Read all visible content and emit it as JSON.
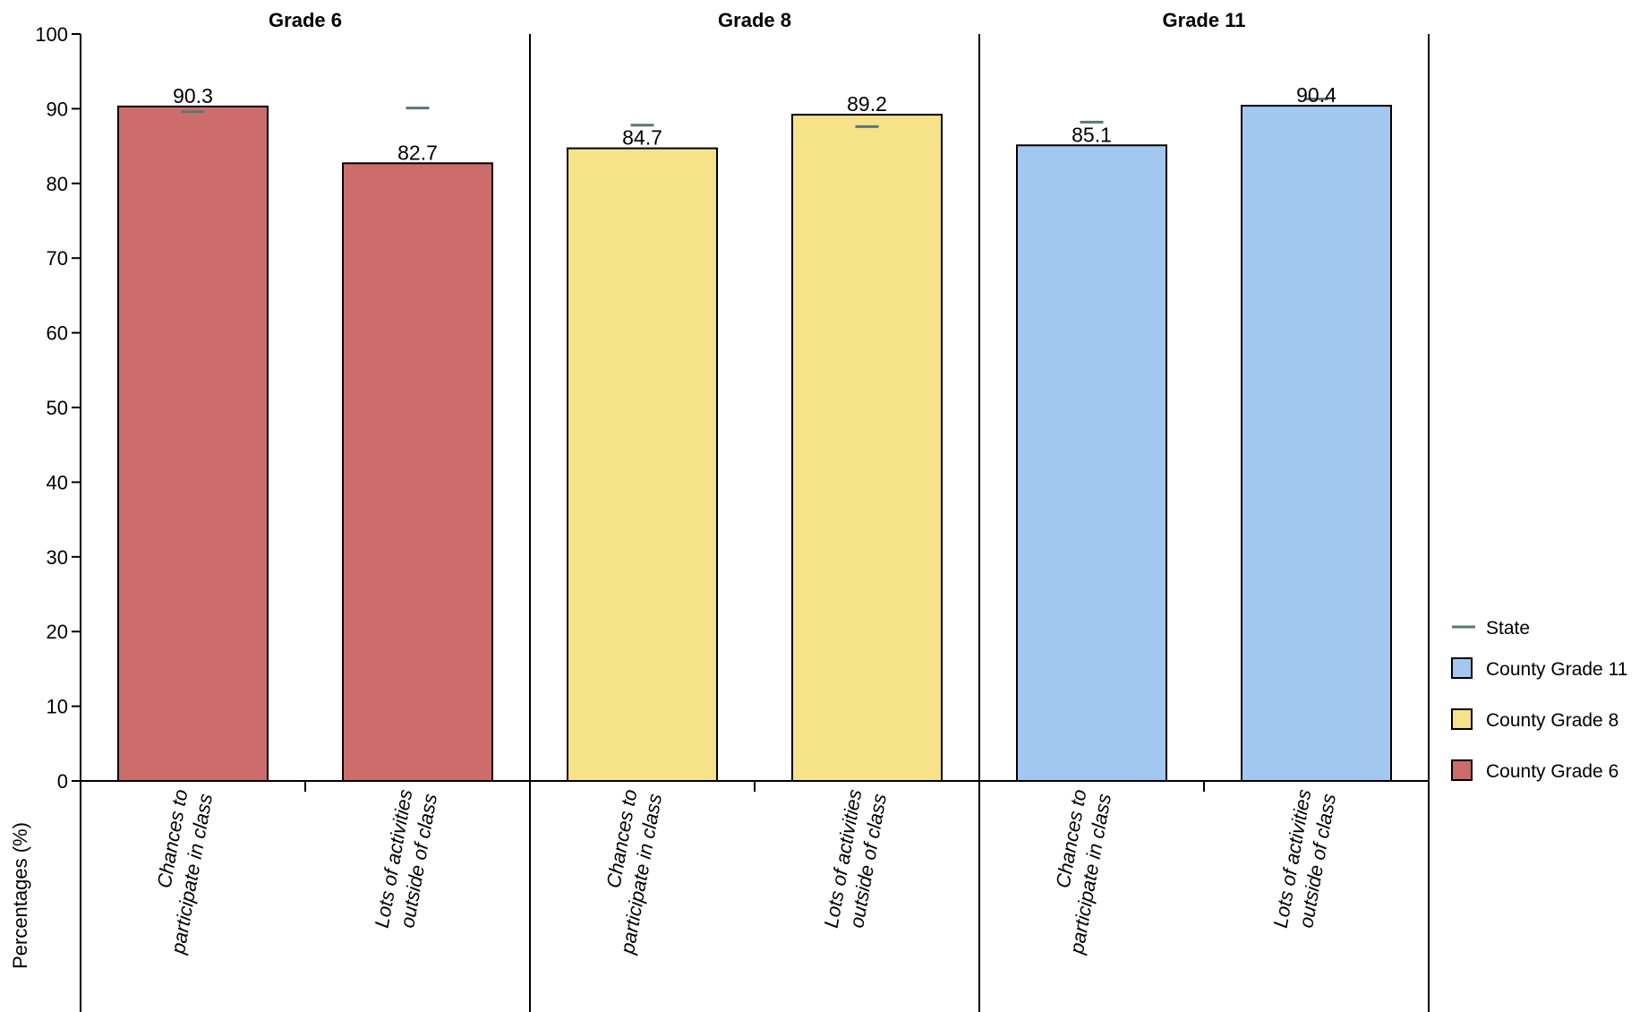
{
  "chart_data": {
    "type": "bar",
    "ylabel": "Percentages (%)",
    "ylim": [
      0,
      100
    ],
    "yticks": [
      0,
      10,
      20,
      30,
      40,
      50,
      60,
      70,
      80,
      90,
      100
    ],
    "categories": [
      [
        "Chances to",
        "participate in class"
      ],
      [
        "Lots of activities",
        "outside of class"
      ]
    ],
    "panels": [
      {
        "title": "Grade 6",
        "series": "County Grade 6",
        "color": "#cd6d6b",
        "values": [
          90.3,
          82.7
        ],
        "state": [
          89.6,
          90.1
        ]
      },
      {
        "title": "Grade 8",
        "series": "County Grade 8",
        "color": "#f5e289",
        "values": [
          84.7,
          89.2
        ],
        "state": [
          87.8,
          87.6
        ]
      },
      {
        "title": "Grade 11",
        "series": "County Grade 11",
        "color": "#a3c8f0",
        "values": [
          85.1,
          90.4
        ],
        "state": [
          88.2,
          91.3
        ]
      }
    ],
    "legend": {
      "position": "right",
      "items": [
        {
          "label": "State",
          "type": "line",
          "color": "#5a7875"
        },
        {
          "label": "County Grade 11",
          "type": "box",
          "color": "#a3c8f0"
        },
        {
          "label": "County Grade 8",
          "type": "box",
          "color": "#f5e289"
        },
        {
          "label": "County Grade 6",
          "type": "box",
          "color": "#cd6d6b"
        }
      ]
    },
    "state_color": "#5a7875",
    "grid": false
  }
}
